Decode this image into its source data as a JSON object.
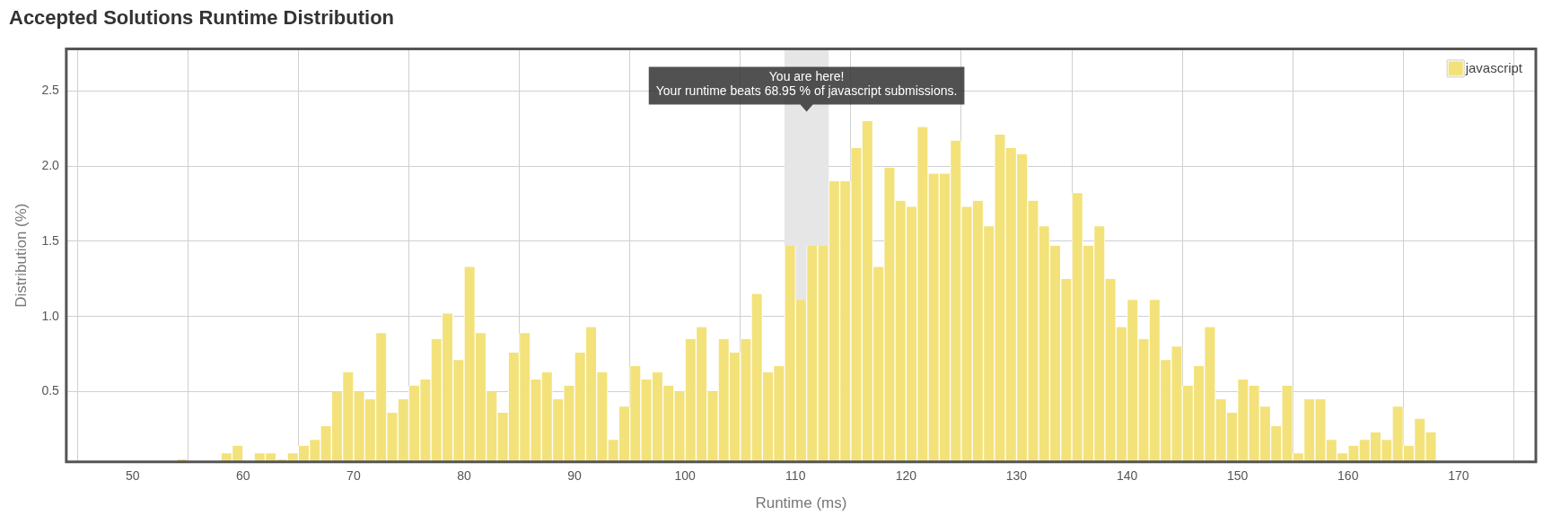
{
  "chart_data": {
    "type": "histogram",
    "title": "Accepted Solutions Runtime Distribution",
    "xlabel": "Runtime (ms)",
    "ylabel": "Distribution (%)",
    "bins": [
      54,
      55,
      56,
      57,
      58,
      59,
      60,
      61,
      62,
      63,
      64,
      65,
      66,
      67,
      68,
      69,
      70,
      71,
      72,
      73,
      74,
      75,
      76,
      77,
      78,
      79,
      80,
      81,
      82,
      83,
      84,
      85,
      86,
      87,
      88,
      89,
      90,
      91,
      92,
      93,
      94,
      95,
      96,
      97,
      98,
      99,
      100,
      101,
      102,
      103,
      104,
      105,
      106,
      107,
      108,
      109,
      110,
      111,
      112,
      113,
      114,
      115,
      116,
      117,
      118,
      119,
      120,
      121,
      122,
      123,
      124,
      125,
      126,
      127,
      128,
      129,
      130,
      131,
      132,
      133,
      134,
      135,
      136,
      137,
      138,
      139,
      140,
      141,
      142,
      143,
      144,
      145,
      146,
      147,
      148,
      149,
      150,
      151,
      152,
      153,
      154,
      155,
      156,
      157,
      158,
      159,
      160,
      161,
      162,
      163,
      164,
      165,
      166,
      167,
      168
    ],
    "series": [
      {
        "name": "javascript",
        "color": "#f3e27a",
        "values": [
          0.05,
          null,
          null,
          null,
          0.09,
          0.14,
          null,
          0.09,
          0.09,
          0.05,
          0.09,
          0.14,
          0.18,
          0.27,
          0.5,
          0.63,
          0.5,
          0.45,
          0.89,
          0.36,
          0.45,
          0.54,
          0.58,
          0.85,
          1.02,
          0.71,
          1.33,
          0.89,
          0.5,
          0.36,
          0.76,
          0.89,
          0.58,
          0.63,
          0.45,
          0.54,
          0.76,
          0.93,
          0.63,
          0.18,
          0.4,
          0.67,
          0.58,
          0.63,
          0.54,
          0.5,
          0.85,
          0.93,
          0.5,
          0.85,
          0.76,
          0.85,
          1.15,
          0.63,
          0.67,
          1.47,
          1.11,
          1.47,
          1.47,
          1.9,
          1.9,
          2.12,
          2.3,
          1.33,
          1.99,
          1.77,
          1.73,
          2.26,
          1.95,
          1.95,
          2.17,
          1.73,
          1.77,
          1.6,
          2.21,
          2.12,
          2.08,
          1.77,
          1.6,
          1.47,
          1.25,
          1.82,
          1.47,
          1.6,
          1.25,
          0.93,
          1.11,
          0.85,
          1.11,
          0.71,
          0.8,
          0.54,
          0.67,
          0.93,
          0.45,
          0.36,
          0.58,
          0.54,
          0.4,
          0.27,
          0.54,
          0.09,
          0.45,
          0.45,
          0.18,
          0.09,
          0.14,
          0.18,
          0.23,
          0.18,
          0.4,
          0.14,
          0.32,
          0.23
        ]
      }
    ],
    "xlim": [
      44,
      177
    ],
    "ylim": [
      0.033,
      2.78
    ],
    "xticks": [
      50,
      60,
      70,
      80,
      90,
      100,
      110,
      120,
      130,
      140,
      150,
      160,
      170
    ],
    "yticks": [
      {
        "value": 0.5,
        "label": "0.5"
      },
      {
        "value": 1,
        "label": "1.0"
      },
      {
        "value": 1.5,
        "label": "1.5"
      },
      {
        "value": 2,
        "label": "2.0"
      },
      {
        "value": 2.5,
        "label": "2.5"
      }
    ],
    "bands": [
      {
        "axis": "x",
        "from": 109,
        "to": 113,
        "color": "#e6e6e6"
      }
    ],
    "annotations": [
      "You are here!",
      "Your runtime beats 68.95 % of javascript submissions."
    ],
    "grid": true,
    "legend": "top right"
  }
}
